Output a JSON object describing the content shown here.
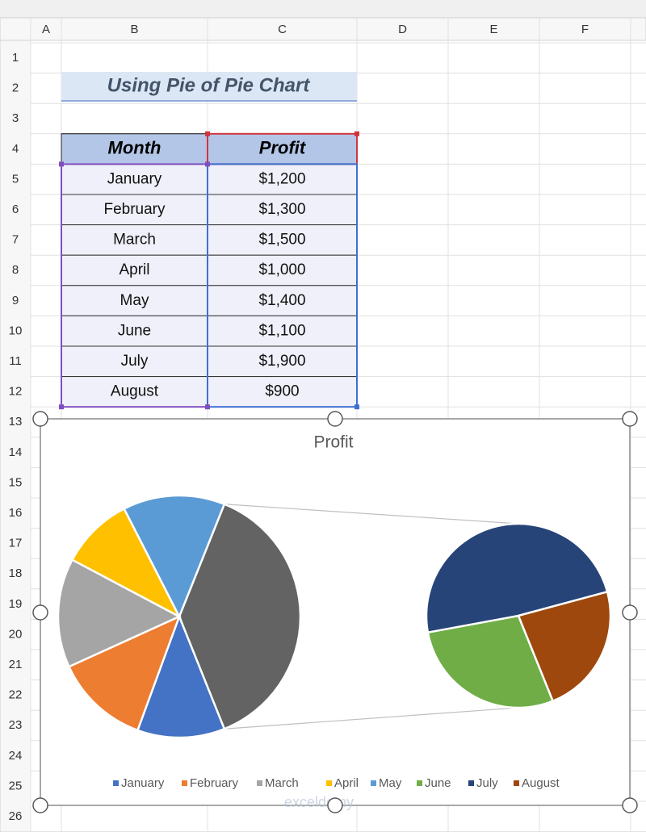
{
  "sheet": {
    "columns": [
      "A",
      "B",
      "C",
      "D",
      "E",
      "F"
    ],
    "rows": [
      1,
      2,
      3,
      4,
      5,
      6,
      7,
      8,
      9,
      10,
      11,
      12,
      13,
      14,
      15,
      16,
      17,
      18,
      19,
      20,
      21,
      22,
      23,
      24,
      25,
      26
    ]
  },
  "title": "Using Pie of Pie Chart",
  "table": {
    "header": [
      "Month",
      "Profit"
    ],
    "rows": [
      [
        "January",
        "$1,200"
      ],
      [
        "February",
        "$1,300"
      ],
      [
        "March",
        "$1,500"
      ],
      [
        "April",
        "$1,000"
      ],
      [
        "May",
        "$1,400"
      ],
      [
        "June",
        "$1,100"
      ],
      [
        "July",
        "$1,900"
      ],
      [
        "August",
        "$900"
      ]
    ]
  },
  "chart_data": {
    "type": "pie-of-pie",
    "title": "Profit",
    "categories": [
      "January",
      "February",
      "March",
      "April",
      "May",
      "June",
      "July",
      "August"
    ],
    "values": [
      1200,
      1300,
      1500,
      1000,
      1400,
      1100,
      1900,
      900
    ],
    "colors": [
      "#4472c4",
      "#ed7d31",
      "#a5a5a5",
      "#ffc000",
      "#5b9bd5",
      "#70ad47",
      "#264478",
      "#9e480e"
    ],
    "second_plot_values": 3,
    "other_color": "#636363",
    "legend": "bottom"
  },
  "watermark": "exceldemy"
}
